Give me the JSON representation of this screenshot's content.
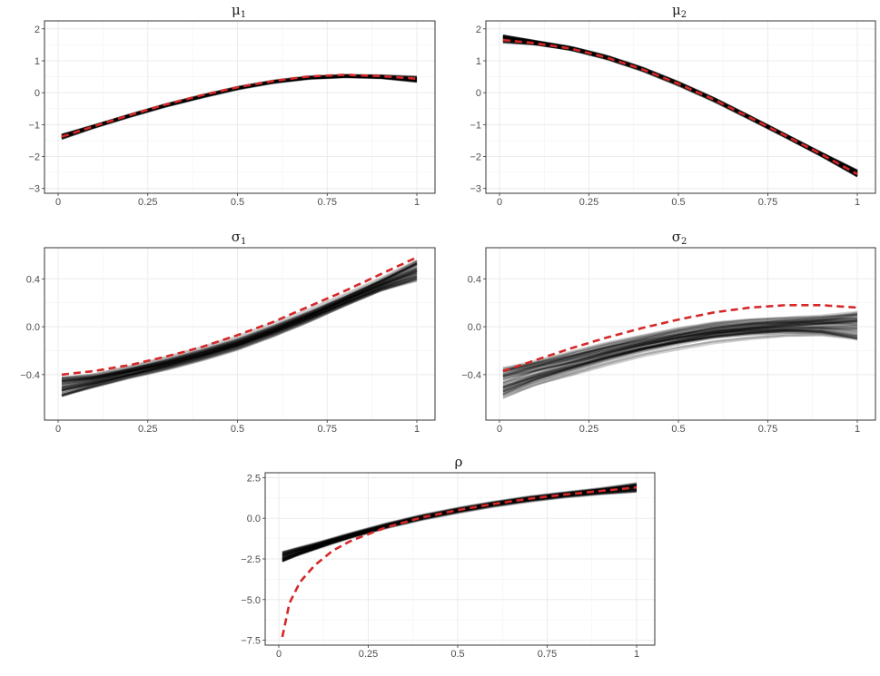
{
  "colors": {
    "truth": "#d62728",
    "estimate": "#000000",
    "grid_major": "#ebebeb",
    "grid_minor": "#f5f5f5",
    "frame": "#333333"
  },
  "chart_data": [
    {
      "type": "line",
      "title": "μ",
      "title_subscript": "1",
      "xlabel": "",
      "ylabel": "",
      "xlim": [
        0,
        1
      ],
      "ylim": [
        -3.15,
        2.25
      ],
      "xticks": [
        0,
        0.25,
        0.5,
        0.75,
        1
      ],
      "xtick_labels": [
        "0",
        "0.25",
        "0.5",
        "0.75",
        "1"
      ],
      "yticks": [
        -3,
        -2,
        -1,
        0,
        1,
        2
      ],
      "ytick_labels": [
        "−3",
        "−2",
        "−1",
        "0",
        "1",
        "2"
      ],
      "grid": true,
      "truth": {
        "x": [
          0.01,
          0.1,
          0.2,
          0.3,
          0.4,
          0.5,
          0.6,
          0.7,
          0.8,
          0.9,
          1.0
        ],
        "y": [
          -1.38,
          -1.05,
          -0.7,
          -0.37,
          -0.08,
          0.17,
          0.37,
          0.51,
          0.56,
          0.52,
          0.44
        ]
      },
      "estimate": {
        "x": [
          0.01,
          0.1,
          0.2,
          0.3,
          0.4,
          0.5,
          0.6,
          0.7,
          0.8,
          0.9,
          1.0
        ],
        "y": [
          -1.38,
          -1.06,
          -0.72,
          -0.4,
          -0.12,
          0.14,
          0.34,
          0.47,
          0.52,
          0.5,
          0.42
        ],
        "band": [
          0.08,
          0.05,
          0.05,
          0.05,
          0.05,
          0.05,
          0.05,
          0.05,
          0.05,
          0.06,
          0.1
        ]
      }
    },
    {
      "type": "line",
      "title": "μ",
      "title_subscript": "2",
      "xlabel": "",
      "ylabel": "",
      "xlim": [
        0,
        1
      ],
      "ylim": [
        -3.15,
        2.25
      ],
      "xticks": [
        0,
        0.25,
        0.5,
        0.75,
        1
      ],
      "xtick_labels": [
        "0",
        "0.25",
        "0.5",
        "0.75",
        "1"
      ],
      "yticks": [
        -3,
        -2,
        -1,
        0,
        1,
        2
      ],
      "ytick_labels": [
        "−3",
        "−2",
        "−1",
        "0",
        "1",
        "2"
      ],
      "grid": true,
      "truth": {
        "x": [
          0.01,
          0.1,
          0.2,
          0.3,
          0.4,
          0.5,
          0.6,
          0.7,
          0.8,
          0.9,
          1.0
        ],
        "y": [
          1.65,
          1.55,
          1.38,
          1.1,
          0.73,
          0.28,
          -0.22,
          -0.78,
          -1.35,
          -1.93,
          -2.55
        ]
      },
      "estimate": {
        "x": [
          0.01,
          0.1,
          0.2,
          0.3,
          0.4,
          0.5,
          0.6,
          0.7,
          0.8,
          0.9,
          1.0
        ],
        "y": [
          1.68,
          1.56,
          1.38,
          1.1,
          0.73,
          0.28,
          -0.22,
          -0.78,
          -1.35,
          -1.93,
          -2.52
        ],
        "band": [
          0.13,
          0.07,
          0.06,
          0.06,
          0.06,
          0.06,
          0.06,
          0.06,
          0.06,
          0.07,
          0.12
        ]
      }
    },
    {
      "type": "line",
      "title": "σ",
      "title_subscript": "1",
      "xlabel": "",
      "ylabel": "",
      "xlim": [
        0,
        1
      ],
      "ylim": [
        -0.78,
        0.66
      ],
      "xticks": [
        0,
        0.25,
        0.5,
        0.75,
        1
      ],
      "xtick_labels": [
        "0",
        "0.25",
        "0.5",
        "0.75",
        "1"
      ],
      "yticks": [
        -0.4,
        0.0,
        0.4
      ],
      "ytick_labels": [
        "−0.4",
        "0.0",
        "0.4"
      ],
      "grid": true,
      "truth": {
        "x": [
          0.01,
          0.1,
          0.2,
          0.3,
          0.4,
          0.5,
          0.6,
          0.7,
          0.8,
          0.9,
          1.0
        ],
        "y": [
          -0.4,
          -0.37,
          -0.32,
          -0.25,
          -0.17,
          -0.07,
          0.04,
          0.17,
          0.3,
          0.44,
          0.58
        ]
      },
      "estimate": {
        "x": [
          0.01,
          0.1,
          0.2,
          0.3,
          0.4,
          0.5,
          0.6,
          0.7,
          0.8,
          0.9,
          1.0
        ],
        "y": [
          -0.5,
          -0.45,
          -0.38,
          -0.31,
          -0.23,
          -0.14,
          -0.03,
          0.09,
          0.22,
          0.35,
          0.47
        ],
        "band": [
          0.09,
          0.06,
          0.05,
          0.05,
          0.05,
          0.05,
          0.05,
          0.05,
          0.05,
          0.06,
          0.1
        ]
      }
    },
    {
      "type": "line",
      "title": "σ",
      "title_subscript": "2",
      "xlabel": "",
      "ylabel": "",
      "xlim": [
        0,
        1
      ],
      "ylim": [
        -0.78,
        0.66
      ],
      "xticks": [
        0,
        0.25,
        0.5,
        0.75,
        1
      ],
      "xtick_labels": [
        "0",
        "0.25",
        "0.5",
        "0.75",
        "1"
      ],
      "yticks": [
        -0.4,
        0.0,
        0.4
      ],
      "ytick_labels": [
        "−0.4",
        "0.0",
        "0.4"
      ],
      "grid": true,
      "truth": {
        "x": [
          0.01,
          0.1,
          0.2,
          0.3,
          0.4,
          0.5,
          0.6,
          0.7,
          0.8,
          0.9,
          1.0
        ],
        "y": [
          -0.37,
          -0.28,
          -0.18,
          -0.09,
          -0.01,
          0.06,
          0.12,
          0.16,
          0.18,
          0.18,
          0.16
        ]
      },
      "estimate": {
        "x": [
          0.01,
          0.1,
          0.2,
          0.3,
          0.4,
          0.5,
          0.6,
          0.7,
          0.8,
          0.9,
          1.0
        ],
        "y": [
          -0.47,
          -0.39,
          -0.31,
          -0.23,
          -0.16,
          -0.1,
          -0.05,
          -0.02,
          0.0,
          0.01,
          0.01
        ],
        "band": [
          0.14,
          0.11,
          0.1,
          0.09,
          0.08,
          0.08,
          0.08,
          0.08,
          0.08,
          0.09,
          0.13
        ]
      }
    },
    {
      "type": "line",
      "title": "ρ",
      "title_subscript": "",
      "xlabel": "",
      "ylabel": "",
      "xlim": [
        0,
        1
      ],
      "ylim": [
        -7.8,
        2.8
      ],
      "xticks": [
        0,
        0.25,
        0.5,
        0.75,
        1
      ],
      "xtick_labels": [
        "0",
        "0.25",
        "0.5",
        "0.75",
        "1"
      ],
      "yticks": [
        -7.5,
        -5.0,
        -2.5,
        0.0,
        2.5
      ],
      "ytick_labels": [
        "−7.5",
        "−5.0",
        "−2.5",
        "0.0",
        "2.5"
      ],
      "grid": true,
      "truth": {
        "x": [
          0.01,
          0.03,
          0.06,
          0.1,
          0.15,
          0.2,
          0.3,
          0.4,
          0.5,
          0.6,
          0.7,
          0.8,
          0.9,
          1.0
        ],
        "y": [
          -7.3,
          -5.2,
          -3.9,
          -2.9,
          -2.0,
          -1.4,
          -0.55,
          0.05,
          0.5,
          0.88,
          1.2,
          1.46,
          1.68,
          1.9
        ]
      },
      "estimate": {
        "x": [
          0.01,
          0.05,
          0.1,
          0.15,
          0.2,
          0.3,
          0.4,
          0.5,
          0.6,
          0.7,
          0.8,
          0.9,
          1.0
        ],
        "y": [
          -2.35,
          -2.05,
          -1.72,
          -1.38,
          -1.05,
          -0.45,
          0.07,
          0.5,
          0.88,
          1.2,
          1.46,
          1.68,
          1.9
        ],
        "band": [
          0.35,
          0.28,
          0.22,
          0.18,
          0.16,
          0.14,
          0.14,
          0.14,
          0.14,
          0.15,
          0.16,
          0.2,
          0.3
        ]
      }
    }
  ]
}
